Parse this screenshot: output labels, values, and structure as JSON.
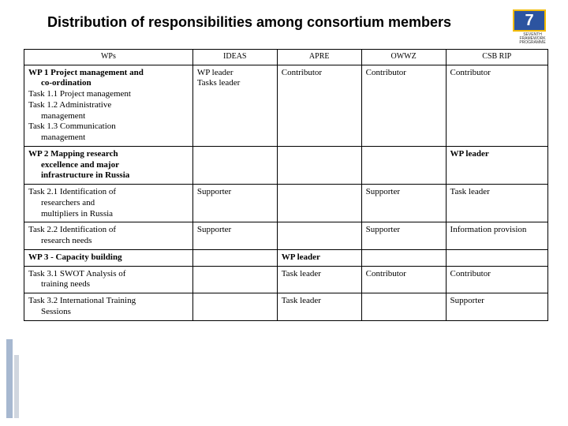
{
  "title": "Distribution of responsibilities among consortium members",
  "logo": {
    "badge": "7",
    "sub": "SEVENTH FRAMEWORK PROGRAMME"
  },
  "headers": {
    "c0": "WPs",
    "c1": "IDEAS",
    "c2": "APRE",
    "c3": "OWWZ",
    "c4": "CSB RIP"
  },
  "rows": [
    {
      "wp_lines": [
        {
          "t": "WP 1 Project management and",
          "b": true
        },
        {
          "t": "co-ordination",
          "b": true,
          "indent": true
        },
        {
          "t": "Task 1.1 Project management",
          "b": false
        },
        {
          "t": "Task 1.2 Administrative",
          "b": false
        },
        {
          "t": "management",
          "b": false,
          "indent": true
        },
        {
          "t": "Task 1.3 Communication",
          "b": false
        },
        {
          "t": "management",
          "b": false,
          "indent": true
        }
      ],
      "c1_lines": [
        {
          "t": "WP leader"
        },
        {
          "t": "Tasks leader"
        }
      ],
      "c2_lines": [
        {
          "t": "Contributor"
        }
      ],
      "c3_lines": [
        {
          "t": "Contributor"
        }
      ],
      "c4_lines": [
        {
          "t": "Contributor"
        }
      ]
    },
    {
      "wp_lines": [
        {
          "t": "WP 2 Mapping research",
          "b": true
        },
        {
          "t": "excellence and major",
          "b": true,
          "indent": true
        },
        {
          "t": "infrastructure in Russia",
          "b": true,
          "indent": true
        }
      ],
      "c1_lines": [],
      "c2_lines": [],
      "c3_lines": [],
      "c4_lines": [
        {
          "t": "WP leader",
          "b": true
        }
      ]
    },
    {
      "wp_lines": [
        {
          "t": "Task 2.1 Identification of"
        },
        {
          "t": "researchers and",
          "indent": true
        },
        {
          "t": "multipliers in Russia",
          "indent": true
        }
      ],
      "c1_lines": [
        {
          "t": "Supporter"
        }
      ],
      "c2_lines": [],
      "c3_lines": [
        {
          "t": "Supporter"
        }
      ],
      "c4_lines": [
        {
          "t": "Task leader"
        }
      ]
    },
    {
      "wp_lines": [
        {
          "t": "Task 2.2 Identification of"
        },
        {
          "t": "research needs",
          "indent": true
        }
      ],
      "c1_lines": [
        {
          "t": "Supporter"
        }
      ],
      "c2_lines": [],
      "c3_lines": [
        {
          "t": "Supporter"
        }
      ],
      "c4_lines": [
        {
          "t": "Information provision"
        }
      ]
    },
    {
      "wp_lines": [
        {
          "t": "WP 3 - Capacity building",
          "b": true
        }
      ],
      "c1_lines": [],
      "c2_lines": [
        {
          "t": "WP leader",
          "b": true
        }
      ],
      "c3_lines": [],
      "c4_lines": []
    },
    {
      "wp_lines": [
        {
          "t": "Task 3.1 SWOT Analysis of"
        },
        {
          "t": "training needs",
          "indent": true
        }
      ],
      "c1_lines": [],
      "c2_lines": [
        {
          "t": "Task leader"
        }
      ],
      "c3_lines": [
        {
          "t": "Contributor"
        }
      ],
      "c4_lines": [
        {
          "t": "Contributor"
        }
      ]
    },
    {
      "wp_lines": [
        {
          "t": "Task 3.2 International Training"
        },
        {
          "t": "Sessions",
          "indent": true
        }
      ],
      "c1_lines": [],
      "c2_lines": [
        {
          "t": "Task leader"
        }
      ],
      "c3_lines": [],
      "c4_lines": [
        {
          "t": "Supporter"
        }
      ]
    }
  ]
}
